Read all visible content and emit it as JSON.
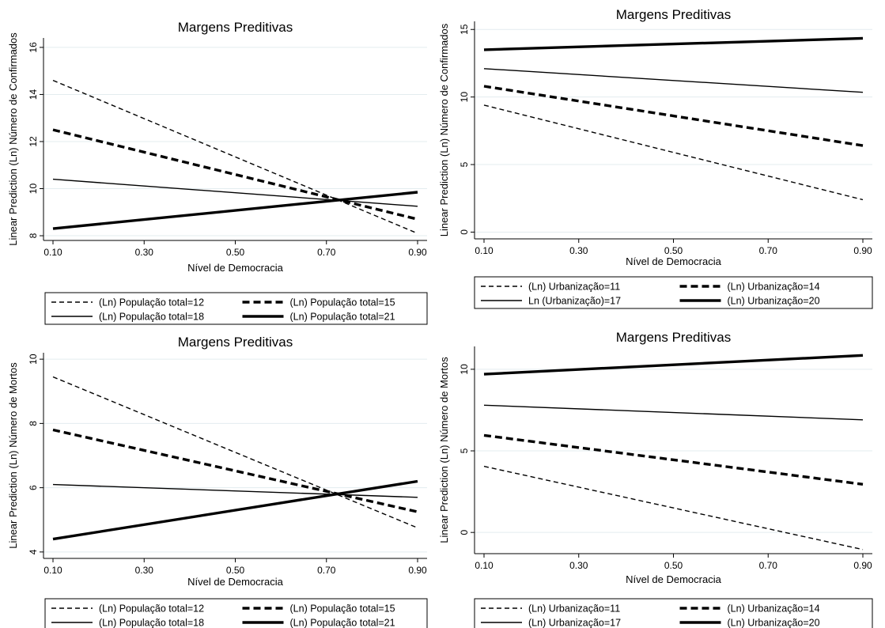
{
  "figure": {
    "chart_data": [
      {
        "type": "line",
        "title": "Margens Preditivas",
        "xlabel": "Nível de Democracia",
        "ylabel": "Linear Prediction (Ln) Número de Confirmados",
        "xlim": [
          0.1,
          0.9
        ],
        "ylim": [
          7.8,
          16.4
        ],
        "x_ticks": [
          "0.10",
          "0.30",
          "0.50",
          "0.70",
          "0.90"
        ],
        "y_ticks": [
          "8",
          "10",
          "12",
          "14",
          "16"
        ],
        "legend_position": "bottom",
        "grid": true,
        "series": [
          {
            "name": "(Ln) População total=12",
            "x": [
              0.1,
              0.9
            ],
            "y": [
              14.6,
              8.1
            ],
            "style": "dash"
          },
          {
            "name": "(Ln) População total=15",
            "x": [
              0.1,
              0.9
            ],
            "y": [
              12.5,
              8.7
            ],
            "style": "dash-bold"
          },
          {
            "name": "(Ln) População total=18",
            "x": [
              0.1,
              0.9
            ],
            "y": [
              10.4,
              9.25
            ],
            "style": "solid"
          },
          {
            "name": "(Ln) População total=21",
            "x": [
              0.1,
              0.9
            ],
            "y": [
              8.3,
              9.85
            ],
            "style": "solid-bold"
          }
        ]
      },
      {
        "type": "line",
        "title": "Margens Preditivas",
        "xlabel": "Nível de Democracia",
        "ylabel": "Linear Prediction (Ln) Número de Confirmados",
        "xlim": [
          0.1,
          0.9
        ],
        "ylim": [
          -0.5,
          15.6
        ],
        "x_ticks": [
          "0.10",
          "0.30",
          "0.50",
          "0.70",
          "0.90"
        ],
        "y_ticks": [
          "0",
          "5",
          "10",
          "15"
        ],
        "legend_position": "bottom",
        "grid": true,
        "series": [
          {
            "name": "(Ln) Urbanização=11",
            "x": [
              0.1,
              0.9
            ],
            "y": [
              9.4,
              2.4
            ],
            "style": "dash"
          },
          {
            "name": "(Ln) Urbanização=14",
            "x": [
              0.1,
              0.9
            ],
            "y": [
              10.8,
              6.4
            ],
            "style": "dash-bold"
          },
          {
            "name": "Ln (Urbanização)=17",
            "x": [
              0.1,
              0.9
            ],
            "y": [
              12.1,
              10.35
            ],
            "style": "solid"
          },
          {
            "name": "(Ln) Urbanização=20",
            "x": [
              0.1,
              0.9
            ],
            "y": [
              13.5,
              14.35
            ],
            "style": "solid-bold"
          }
        ]
      },
      {
        "type": "line",
        "title": "Margens Preditivas",
        "xlabel": "Nível de Democracia",
        "ylabel": "Linear Prediction (Ln) Número de Mortos",
        "xlim": [
          0.1,
          0.9
        ],
        "ylim": [
          3.8,
          10.2
        ],
        "x_ticks": [
          "0.10",
          "0.30",
          "0.50",
          "0.70",
          "0.90"
        ],
        "y_ticks": [
          "4",
          "6",
          "8",
          "10"
        ],
        "legend_position": "bottom",
        "grid": true,
        "series": [
          {
            "name": "(Ln) População total=12",
            "x": [
              0.1,
              0.9
            ],
            "y": [
              9.45,
              4.75
            ],
            "style": "dash"
          },
          {
            "name": "(Ln) População total=15",
            "x": [
              0.1,
              0.9
            ],
            "y": [
              7.8,
              5.25
            ],
            "style": "dash-bold"
          },
          {
            "name": "(Ln) População total=18",
            "x": [
              0.1,
              0.9
            ],
            "y": [
              6.1,
              5.7
            ],
            "style": "solid"
          },
          {
            "name": "(Ln) População total=21",
            "x": [
              0.1,
              0.9
            ],
            "y": [
              4.4,
              6.2
            ],
            "style": "solid-bold"
          }
        ]
      },
      {
        "type": "line",
        "title": "Margens Preditivas",
        "xlabel": "Nível de Democracia",
        "ylabel": "Linear Prediction (Ln) Número de Mortos",
        "xlim": [
          0.1,
          0.9
        ],
        "ylim": [
          -1.3,
          11.4
        ],
        "x_ticks": [
          "0.10",
          "0.30",
          "0.50",
          "0.70",
          "0.90"
        ],
        "y_ticks": [
          "0",
          "5",
          "10"
        ],
        "legend_position": "bottom",
        "grid": true,
        "series": [
          {
            "name": "(Ln) Urbanização=11",
            "x": [
              0.1,
              0.9
            ],
            "y": [
              4.05,
              -1.05
            ],
            "style": "dash"
          },
          {
            "name": "(Ln) Urbanização=14",
            "x": [
              0.1,
              0.9
            ],
            "y": [
              5.95,
              2.95
            ],
            "style": "dash-bold"
          },
          {
            "name": "(Ln) Urbanização=17",
            "x": [
              0.1,
              0.9
            ],
            "y": [
              7.8,
              6.9
            ],
            "style": "solid"
          },
          {
            "name": "(Ln) Urbanização=20",
            "x": [
              0.1,
              0.9
            ],
            "y": [
              9.7,
              10.85
            ],
            "style": "solid-bold"
          }
        ]
      }
    ]
  }
}
